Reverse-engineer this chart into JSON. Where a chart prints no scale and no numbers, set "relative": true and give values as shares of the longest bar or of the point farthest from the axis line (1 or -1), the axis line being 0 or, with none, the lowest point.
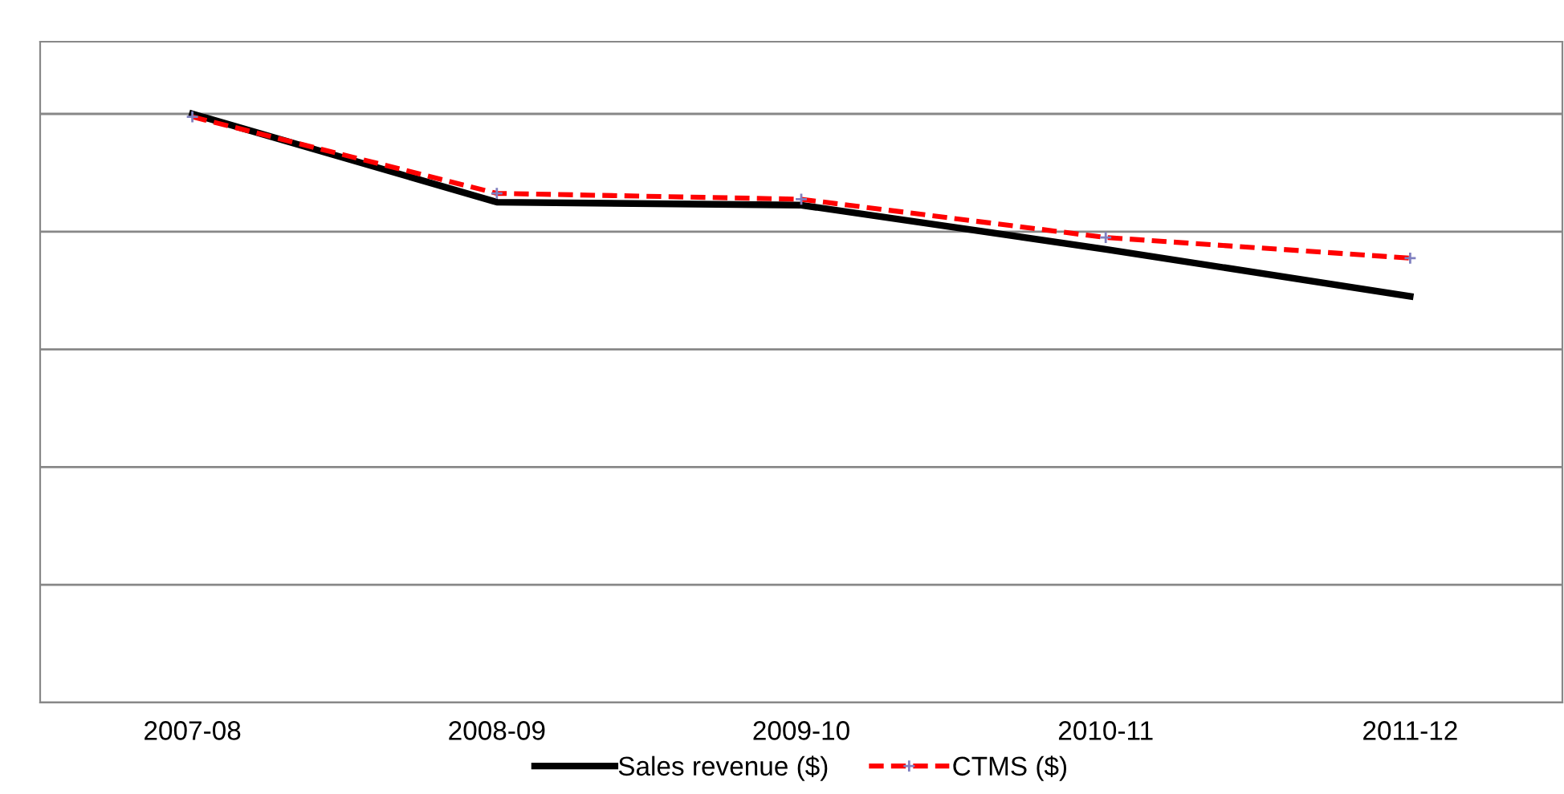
{
  "chart_data": {
    "type": "line",
    "relative": true,
    "categories": [
      "2007-08",
      "2008-09",
      "2009-10",
      "2010-11",
      "2011-12"
    ],
    "series": [
      {
        "name": "Sales revenue ($)",
        "color": "#000000",
        "line_style": "solid",
        "marker": "none",
        "values": [
          1,
          0.85,
          0.845,
          0.77,
          0.69
        ]
      },
      {
        "name": "CTMS ($)",
        "color": "#ff0000",
        "line_style": "dashed",
        "marker": "cross",
        "values": [
          0.995,
          0.865,
          0.855,
          0.79,
          0.755
        ]
      }
    ],
    "grid": "y",
    "legend": "bottom"
  }
}
